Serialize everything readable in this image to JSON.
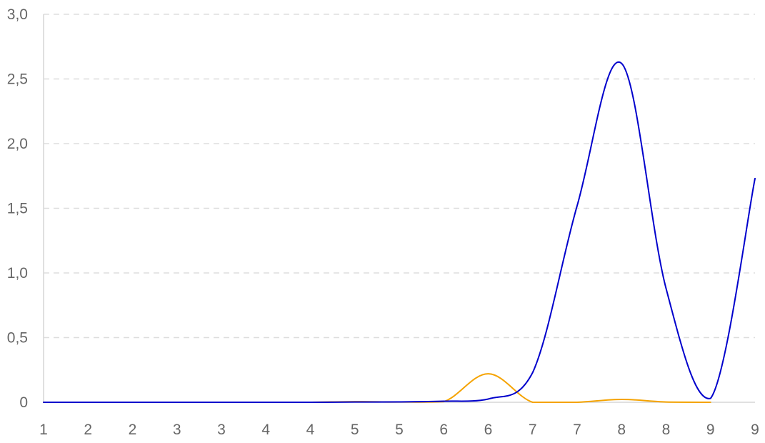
{
  "chart_data": {
    "type": "line",
    "title": "",
    "xlabel": "",
    "ylabel": "",
    "grid": "horizontal-dashed",
    "legend": "none",
    "x_tick_labels": [
      "1",
      "2",
      "2",
      "3",
      "3",
      "4",
      "4",
      "5",
      "5",
      "6",
      "6",
      "7",
      "7",
      "8",
      "8",
      "9",
      "9"
    ],
    "y_tick_labels": [
      "0",
      "0,5",
      "1,0",
      "1,5",
      "2,0",
      "2,5",
      "3,0"
    ],
    "y_tick_values": [
      0,
      0.5,
      1.0,
      1.5,
      2.0,
      2.5,
      3.0
    ],
    "ylim": [
      0,
      3.0
    ],
    "series": [
      {
        "color": "#f5a300",
        "values": [
          0,
          0,
          0,
          0,
          0,
          0,
          0,
          0.005,
          0.002,
          0.005,
          0.22,
          0.0,
          0.0,
          0.022,
          0.002,
          0.0,
          null
        ]
      },
      {
        "color": "#0000cc",
        "values": [
          0,
          0,
          0,
          0,
          0,
          0,
          0,
          0.002,
          0.003,
          0.008,
          0.025,
          0.23,
          1.52,
          2.62,
          0.88,
          0.03,
          1.73
        ]
      }
    ]
  }
}
